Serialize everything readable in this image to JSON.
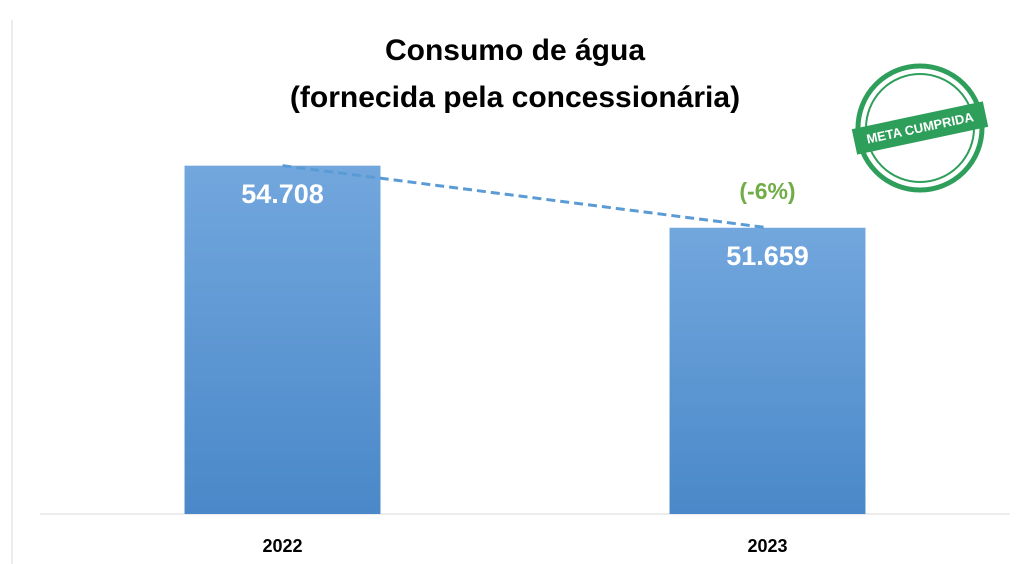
{
  "chart_data": {
    "type": "bar",
    "title": [
      "Consumo de água",
      "(fornecida pela concessionária)"
    ],
    "categories": [
      "2022",
      "2023"
    ],
    "values": [
      54708,
      51659
    ],
    "value_labels": [
      "54.708",
      "51.659"
    ],
    "color": "#5b9bd5",
    "ylim": [
      37600,
      57000
    ],
    "trend_line": true,
    "annotation": "(-6%)",
    "annotation_color": "#70ad47",
    "stamp": "META CUMPRIDA",
    "stamp_color": "#2e9e5b"
  }
}
